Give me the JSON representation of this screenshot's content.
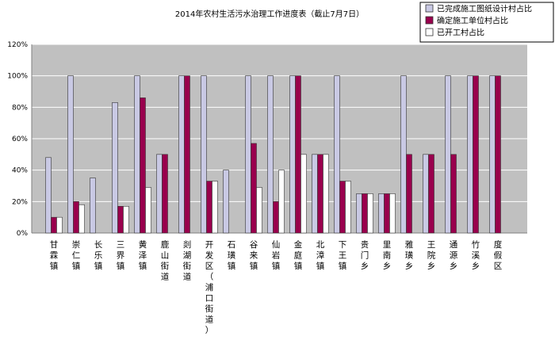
{
  "chart_data": {
    "type": "bar",
    "title": "2014年农村生活污水治理工作进度表（截止7月7日）",
    "categories": [
      "甘霖镇",
      "崇仁镇",
      "长乐镇",
      "三界镇",
      "黄泽镇",
      "鹿山街道",
      "剡湖街道",
      "开发区（浦口街道）",
      "石璜镇",
      "谷来镇",
      "仙岩镇",
      "金庭镇",
      "北漳镇",
      "下王镇",
      "贵门乡",
      "里南乡",
      "雅璜乡",
      "王院乡",
      "通源乡",
      "竹溪乡",
      "度假区"
    ],
    "series": [
      {
        "name": "已完成施工图纸设计村占比",
        "color": "#c9c9e4",
        "values": [
          48,
          100,
          35,
          83,
          100,
          50,
          100,
          100,
          40,
          100,
          100,
          100,
          50,
          100,
          25,
          25,
          100,
          50,
          100,
          100,
          100
        ]
      },
      {
        "name": "确定施工单位村占比",
        "color": "#99004d",
        "values": [
          10,
          20,
          0,
          17,
          86,
          50,
          100,
          33,
          0,
          57,
          20,
          100,
          50,
          33,
          25,
          25,
          50,
          50,
          50,
          100,
          100
        ]
      },
      {
        "name": "已开工村占比",
        "color": "#ffffff",
        "values": [
          10,
          18,
          0,
          17,
          29,
          0,
          0,
          33,
          0,
          29,
          40,
          50,
          50,
          33,
          25,
          25,
          0,
          0,
          0,
          0,
          0
        ]
      }
    ],
    "yticks": [
      "0%",
      "20%",
      "40%",
      "60%",
      "80%",
      "100%",
      "120%"
    ],
    "ylim": [
      0,
      120
    ],
    "grid": true,
    "legend": "top-right"
  }
}
